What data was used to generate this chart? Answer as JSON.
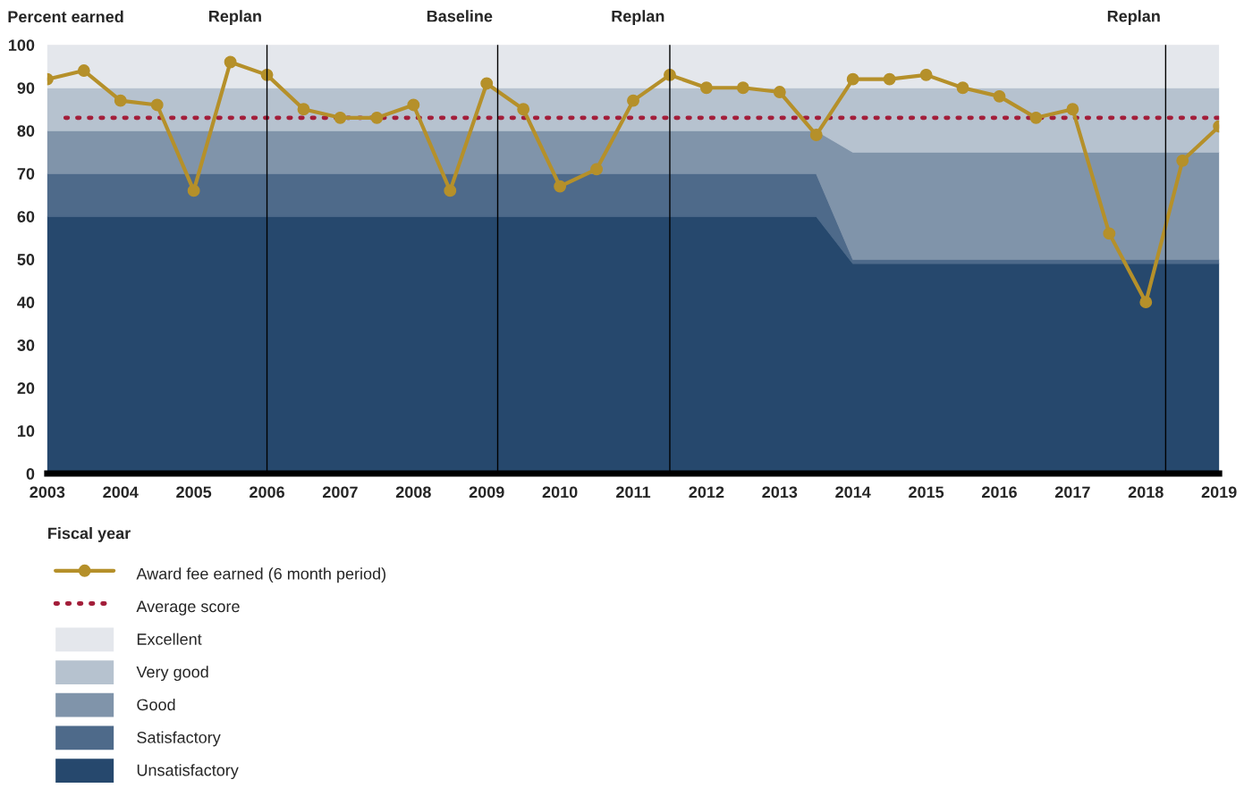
{
  "chart_data": {
    "type": "line",
    "ylabel": "Percent earned",
    "xlabel": "Fiscal year",
    "xlim": [
      2003,
      2019
    ],
    "xticks": [
      2003,
      2004,
      2005,
      2006,
      2007,
      2008,
      2009,
      2010,
      2011,
      2012,
      2013,
      2014,
      2015,
      2016,
      2017,
      2018,
      2019
    ],
    "ylim": [
      0,
      100
    ],
    "yticks": [
      0,
      10,
      20,
      30,
      40,
      50,
      60,
      70,
      80,
      90,
      100
    ],
    "stacked": true,
    "grid": false,
    "legend": "bottom",
    "series": [
      {
        "name": "Unsatisfactory",
        "type": "area",
        "color": "#26486d",
        "x": [
          2003,
          2013.5,
          2014,
          2019
        ],
        "values": [
          60,
          60,
          49,
          49
        ]
      },
      {
        "name": "Satisfactory",
        "type": "area",
        "color": "#4e6a8a",
        "x": [
          2003,
          2013.5,
          2014,
          2019
        ],
        "values": [
          10,
          10,
          1,
          1
        ]
      },
      {
        "name": "Good",
        "type": "area",
        "color": "#8094aa",
        "x": [
          2003,
          2013.5,
          2014,
          2019
        ],
        "values": [
          10,
          10,
          25,
          25
        ]
      },
      {
        "name": "Very good",
        "type": "area",
        "color": "#b6c2cf",
        "x": [
          2003,
          2013.5,
          2014,
          2019
        ],
        "values": [
          10,
          10,
          15,
          15
        ]
      },
      {
        "name": "Excellent",
        "type": "area",
        "color": "#e4e7ec",
        "x": [
          2003,
          2013.5,
          2014,
          2019
        ],
        "values": [
          10,
          10,
          10,
          10
        ]
      },
      {
        "name": "Average score",
        "color": "#a31e3a",
        "line_style": "dotted",
        "marker": "none",
        "x": [
          2003.25,
          2019
        ],
        "values": [
          83,
          83
        ]
      },
      {
        "name": "Award fee earned (6 month period)",
        "color": "#b5902a",
        "line_style": "solid",
        "marker": "circle",
        "x": [
          2003,
          2003.5,
          2004,
          2004.5,
          2005,
          2005.5,
          2006,
          2006.5,
          2007,
          2007.5,
          2008,
          2008.5,
          2009,
          2009.5,
          2010,
          2010.5,
          2011,
          2011.5,
          2012,
          2012.5,
          2013,
          2013.5,
          2014,
          2014.5,
          2015,
          2015.5,
          2016,
          2016.5,
          2017,
          2017.5,
          2018,
          2018.5,
          2019
        ],
        "values": [
          92,
          94,
          87,
          86,
          66,
          96,
          93,
          85,
          83,
          83,
          86,
          66,
          91,
          85,
          67,
          71,
          87,
          93,
          90,
          90,
          89,
          79,
          92,
          92,
          93,
          90,
          88,
          83,
          85,
          56,
          40,
          73,
          81
        ]
      }
    ],
    "ref_lines": [
      {
        "axis": "x",
        "value": 2006,
        "label": "Replan",
        "color": "#000000"
      },
      {
        "axis": "x",
        "value": 2009.15,
        "label": "Baseline",
        "color": "#000000"
      },
      {
        "axis": "x",
        "value": 2011.5,
        "label": "Replan",
        "color": "#000000"
      },
      {
        "axis": "x",
        "value": 2018.27,
        "label": "Replan",
        "color": "#000000"
      }
    ]
  }
}
